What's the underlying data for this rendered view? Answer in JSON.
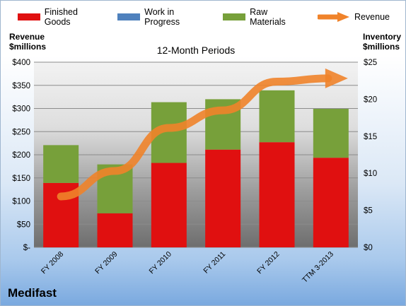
{
  "legend": {
    "finished_goods": "Finished Goods",
    "work_in_progress": "Work in Progress",
    "raw_materials": "Raw Materials",
    "revenue": "Revenue"
  },
  "left_axis_title_line1": "Revenue",
  "left_axis_title_line2": "$millions",
  "right_axis_title_line1": "Inventory",
  "right_axis_title_line2": "$millions",
  "company": "Medifast",
  "colors": {
    "finished_goods": "#e01010",
    "work_in_progress": "#4f81bd",
    "raw_materials": "#77a03a",
    "revenue": "#f0832a"
  },
  "chart_data": {
    "type": "bar",
    "subtitle": "12-Month Periods",
    "categories": [
      "FY 2008",
      "FY 2009",
      "FY 2010",
      "FY 2011",
      "FY 2012",
      "TTM 3-2013"
    ],
    "inventory_series": [
      {
        "name": "Finished Goods",
        "values": [
          8.7,
          4.6,
          11.4,
          13.2,
          14.2,
          12.1
        ]
      },
      {
        "name": "Work in Progress",
        "values": [
          0,
          0,
          0,
          0,
          0,
          0
        ]
      },
      {
        "name": "Raw Materials",
        "values": [
          5.1,
          6.6,
          8.2,
          6.8,
          7.0,
          6.6
        ]
      }
    ],
    "revenue_series": {
      "name": "Revenue",
      "values": [
        110,
        165,
        258,
        296,
        358,
        365
      ]
    },
    "left_axis": {
      "min": 0,
      "max": 400,
      "step": 50,
      "tick_labels": [
        "$-",
        "$50",
        "$100",
        "$150",
        "$200",
        "$250",
        "$300",
        "$350",
        "$400"
      ]
    },
    "right_axis": {
      "min": 0,
      "max": 25,
      "step": 5,
      "tick_labels": [
        "$0",
        "$5",
        "$10",
        "$15",
        "$20",
        "$25"
      ]
    },
    "stacked": true,
    "grid": true,
    "legend_position": "top"
  }
}
